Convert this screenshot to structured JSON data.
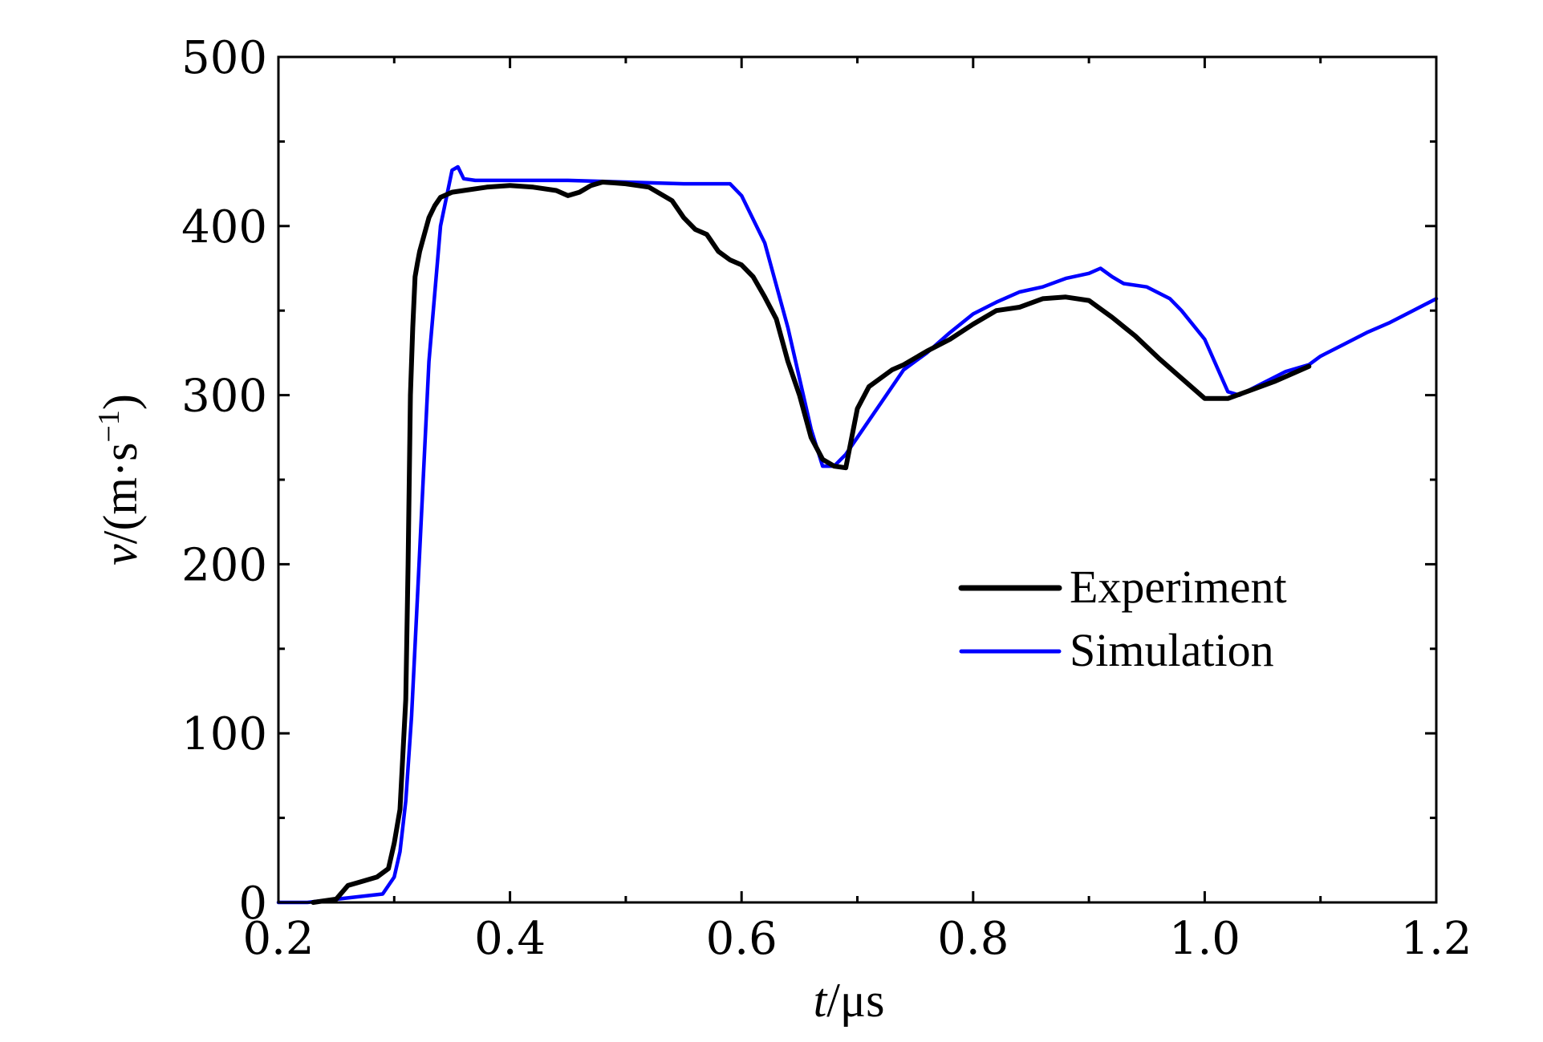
{
  "chart_data": {
    "type": "line",
    "xlabel": {
      "italic": "t",
      "rest": "/μs"
    },
    "ylabel": {
      "italic": "v",
      "rest": "/(m·s",
      "sup": "−1",
      "close": ")"
    },
    "xlim": [
      0.2,
      1.2
    ],
    "ylim": [
      0,
      500
    ],
    "x_ticks": [
      0.2,
      0.4,
      0.6,
      0.8,
      1.0,
      1.2
    ],
    "x_tick_labels": [
      "0.2",
      "0.4",
      "0.6",
      "0.8",
      "1.0",
      "1.2"
    ],
    "y_ticks": [
      0,
      100,
      200,
      300,
      400,
      500
    ],
    "y_tick_labels": [
      "0",
      "100",
      "200",
      "300",
      "400",
      "500"
    ],
    "grid": false,
    "legend_position": "right-middle",
    "series": [
      {
        "name": "Experiment",
        "color": "#000000",
        "x": [
          0.23,
          0.25,
          0.26,
          0.27,
          0.285,
          0.295,
          0.3,
          0.305,
          0.31,
          0.312,
          0.314,
          0.316,
          0.318,
          0.32,
          0.322,
          0.326,
          0.33,
          0.335,
          0.34,
          0.35,
          0.36,
          0.38,
          0.4,
          0.42,
          0.44,
          0.45,
          0.46,
          0.47,
          0.48,
          0.5,
          0.52,
          0.54,
          0.55,
          0.56,
          0.57,
          0.58,
          0.59,
          0.6,
          0.61,
          0.62,
          0.63,
          0.64,
          0.65,
          0.66,
          0.67,
          0.68,
          0.69,
          0.7,
          0.71,
          0.72,
          0.73,
          0.74,
          0.76,
          0.78,
          0.8,
          0.82,
          0.84,
          0.86,
          0.88,
          0.9,
          0.92,
          0.94,
          0.96,
          0.98,
          1.0,
          1.02,
          1.04,
          1.06,
          1.08,
          1.09
        ],
        "y": [
          0,
          2,
          10,
          12,
          15,
          20,
          35,
          55,
          120,
          200,
          300,
          340,
          370,
          378,
          385,
          395,
          405,
          412,
          417,
          420,
          421,
          423,
          424,
          423,
          421,
          418,
          420,
          424,
          426,
          425,
          423,
          415,
          405,
          398,
          395,
          385,
          380,
          377,
          370,
          358,
          345,
          320,
          300,
          275,
          262,
          258,
          257,
          292,
          305,
          310,
          315,
          318,
          326,
          333,
          342,
          350,
          352,
          357,
          358,
          356,
          346,
          335,
          322,
          310,
          298,
          298,
          303,
          308,
          314,
          317
        ]
      },
      {
        "name": "Simulation",
        "color": "#0000ff",
        "x": [
          0.2,
          0.225,
          0.29,
          0.3,
          0.305,
          0.31,
          0.315,
          0.32,
          0.325,
          0.33,
          0.34,
          0.35,
          0.355,
          0.36,
          0.37,
          0.4,
          0.45,
          0.5,
          0.55,
          0.58,
          0.59,
          0.6,
          0.62,
          0.64,
          0.66,
          0.67,
          0.68,
          0.69,
          0.7,
          0.72,
          0.74,
          0.76,
          0.78,
          0.8,
          0.82,
          0.84,
          0.86,
          0.88,
          0.9,
          0.91,
          0.92,
          0.93,
          0.95,
          0.97,
          0.98,
          1.0,
          1.02,
          1.03,
          1.05,
          1.07,
          1.09,
          1.1,
          1.12,
          1.14,
          1.16,
          1.18,
          1.2
        ],
        "y": [
          0,
          0,
          5,
          15,
          30,
          60,
          110,
          180,
          250,
          320,
          400,
          433,
          435,
          428,
          427,
          427,
          427,
          426,
          425,
          425,
          425,
          418,
          390,
          340,
          280,
          258,
          258,
          265,
          275,
          295,
          315,
          325,
          337,
          348,
          355,
          361,
          364,
          369,
          372,
          375,
          370,
          366,
          364,
          357,
          350,
          333,
          302,
          300,
          307,
          314,
          318,
          323,
          330,
          337,
          343,
          350,
          357
        ]
      }
    ]
  }
}
